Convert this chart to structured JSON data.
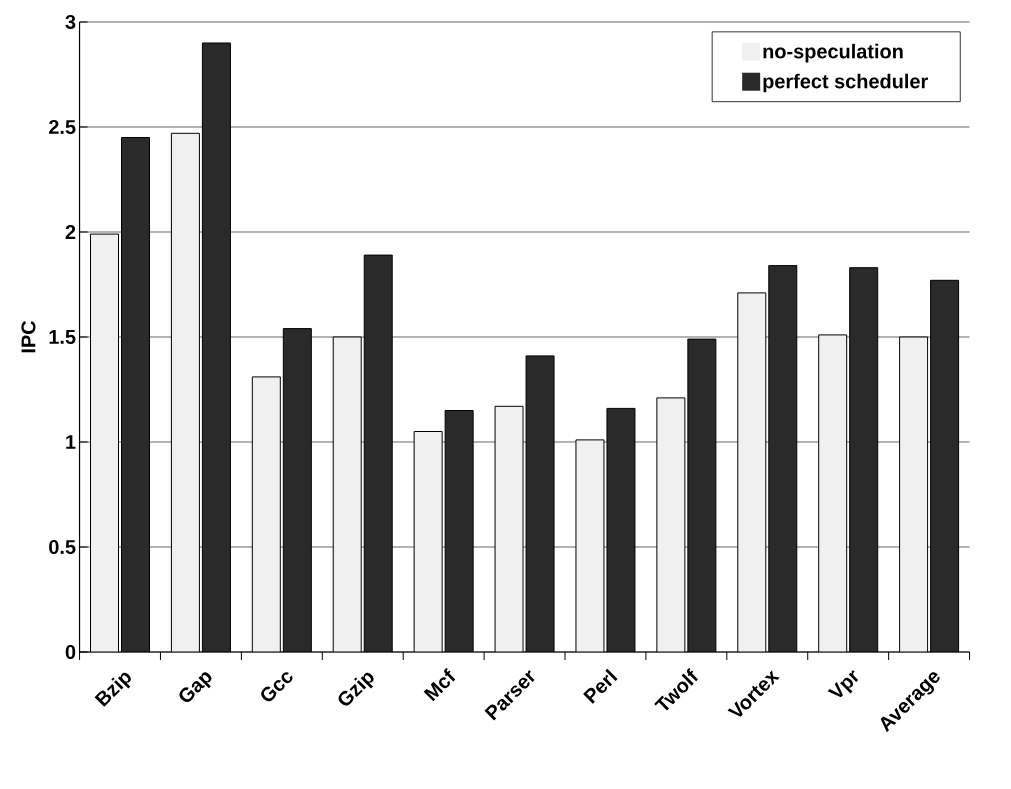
{
  "chart_data": {
    "type": "bar",
    "ylabel": "IPC",
    "categories": [
      "Bzip",
      "Gap",
      "Gcc",
      "Gzip",
      "Mcf",
      "Parser",
      "Perl",
      "Twolf",
      "Vortex",
      "Vpr",
      "Average"
    ],
    "series": [
      {
        "name": "no-speculation",
        "color": "#f0f0f0",
        "values": [
          1.99,
          2.47,
          1.31,
          1.5,
          1.05,
          1.17,
          1.01,
          1.21,
          1.71,
          1.51,
          1.5
        ]
      },
      {
        "name": "perfect scheduler",
        "color": "#2a2a2a",
        "values": [
          2.45,
          2.9,
          1.54,
          1.89,
          1.15,
          1.41,
          1.16,
          1.49,
          1.84,
          1.83,
          1.77
        ]
      }
    ],
    "ylim": [
      0,
      3
    ],
    "yticks": [
      0,
      0.5,
      1,
      1.5,
      2,
      2.5,
      3
    ],
    "grid": "y",
    "legend": "top right"
  }
}
